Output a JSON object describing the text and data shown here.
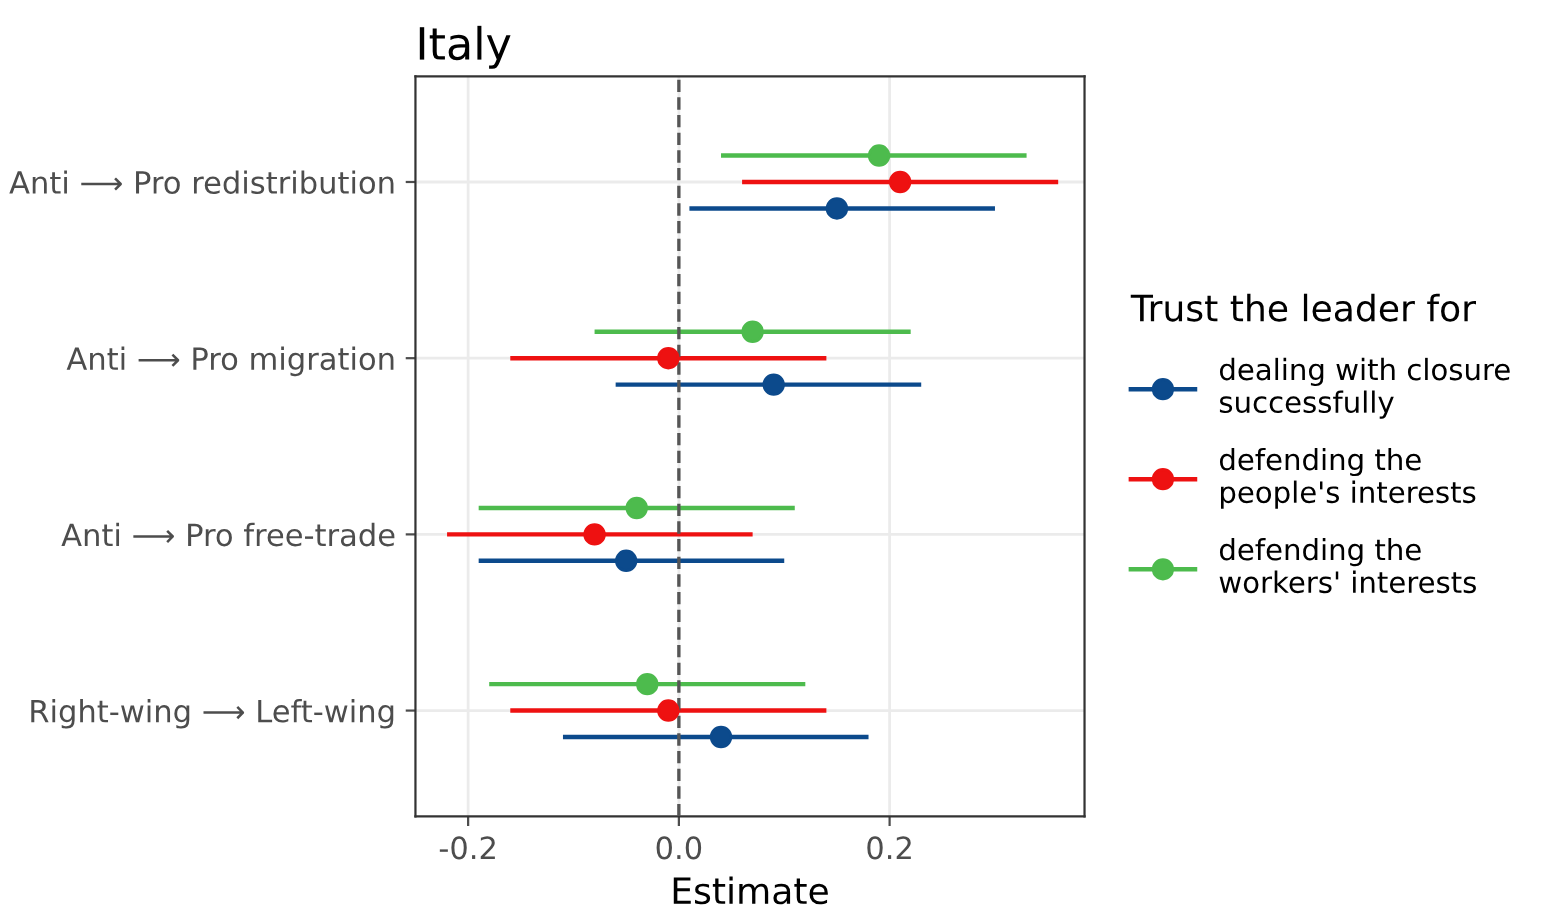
{
  "chart_data": {
    "type": "scatter",
    "orientation": "horizontal",
    "title": "Italy",
    "xlabel": "Estimate",
    "legend_title": "Trust the leader for",
    "categories": [
      "Anti ⟶ Pro redistribution",
      "Anti ⟶ Pro migration",
      "Anti ⟶ Pro free-trade",
      "Right-wing ⟶ Left-wing"
    ],
    "series": [
      {
        "name": "dealing with closure\nsuccessfully",
        "color": "#0c4a8c",
        "values": [
          0.15,
          0.09,
          -0.05,
          0.04
        ],
        "errors": [
          [
            0.01,
            0.3
          ],
          [
            -0.06,
            0.23
          ],
          [
            -0.19,
            0.1
          ],
          [
            -0.11,
            0.18
          ]
        ]
      },
      {
        "name": "defending the\npeople's interests",
        "color": "#ee1111",
        "values": [
          0.21,
          -0.01,
          -0.08,
          -0.01
        ],
        "errors": [
          [
            0.06,
            0.36
          ],
          [
            -0.16,
            0.14
          ],
          [
            -0.22,
            0.07
          ],
          [
            -0.16,
            0.14
          ]
        ]
      },
      {
        "name": "defending the\nworkers' interests",
        "color": "#4dbb4d",
        "values": [
          0.19,
          0.07,
          -0.04,
          -0.03
        ],
        "errors": [
          [
            0.04,
            0.33
          ],
          [
            -0.08,
            0.22
          ],
          [
            -0.19,
            0.11
          ],
          [
            -0.18,
            0.12
          ]
        ]
      }
    ],
    "xlim": [
      -0.25,
      0.385
    ],
    "xticks": [
      {
        "value": -0.2,
        "label": "-0.2"
      },
      {
        "value": 0,
        "label": "0.0"
      },
      {
        "value": 0.2,
        "label": "0.2"
      }
    ],
    "ref_lines": [
      {
        "axis": "x",
        "value": 0,
        "color": "#555555",
        "line_style": "dashed"
      }
    ],
    "grid": true,
    "legend": "right",
    "marker": "circle"
  }
}
